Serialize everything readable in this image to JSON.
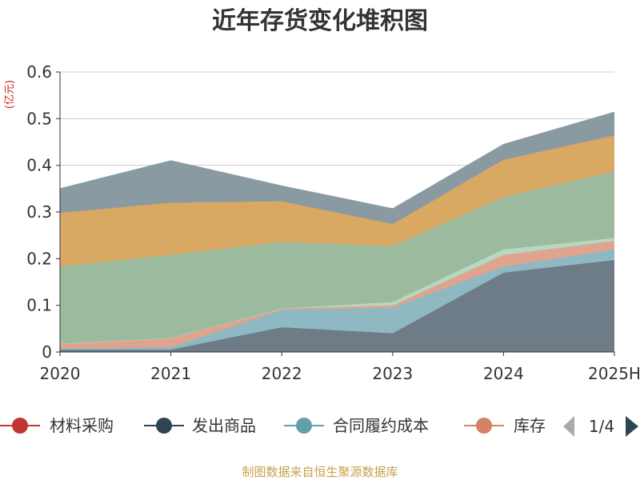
{
  "chart_data": {
    "type": "area",
    "title": "近年存货变化堆积图",
    "unit_label": "(亿元)",
    "categories": [
      "2020",
      "2021",
      "2022",
      "2023",
      "2024",
      "2025H"
    ],
    "ylim": [
      0,
      0.6
    ],
    "yticks": [
      "0",
      "0.1",
      "0.2",
      "0.3",
      "0.4",
      "0.5",
      "0.6"
    ],
    "grid": true,
    "stacked": true,
    "series": [
      {
        "name": "发出商品",
        "color": "#6e7c88",
        "values": [
          0.005,
          0.005,
          0.053,
          0.04,
          0.17,
          0.197
        ]
      },
      {
        "name": "合同履约成本",
        "color": "#8fb9c2",
        "values": [
          0.003,
          0.005,
          0.037,
          0.055,
          0.013,
          0.023
        ]
      },
      {
        "name": "库存",
        "color": "#e0a48e",
        "values": [
          0.01,
          0.02,
          0.003,
          0.005,
          0.025,
          0.018
        ]
      },
      {
        "name": "",
        "color": "#b3d9c2",
        "values": [
          0.0,
          0.0,
          0.0,
          0.007,
          0.012,
          0.006
        ]
      },
      {
        "name": "",
        "color": "#9cba9e",
        "values": [
          0.165,
          0.178,
          0.143,
          0.12,
          0.112,
          0.143
        ]
      },
      {
        "name": "",
        "color": "#d9a863",
        "values": [
          0.115,
          0.112,
          0.087,
          0.047,
          0.08,
          0.077
        ]
      },
      {
        "name": "",
        "color": "#8a9aa3",
        "values": [
          0.052,
          0.09,
          0.033,
          0.033,
          0.033,
          0.05
        ]
      }
    ]
  },
  "legend": {
    "items": [
      {
        "label": "材料采购",
        "color": "#c23531"
      },
      {
        "label": "发出商品",
        "color": "#2f4554"
      },
      {
        "label": "合同履约成本",
        "color": "#61a0a8"
      },
      {
        "label": "库存",
        "color": "#d48265"
      }
    ],
    "page_text": "1/4"
  },
  "source": "制图数据来自恒生聚源数据库"
}
